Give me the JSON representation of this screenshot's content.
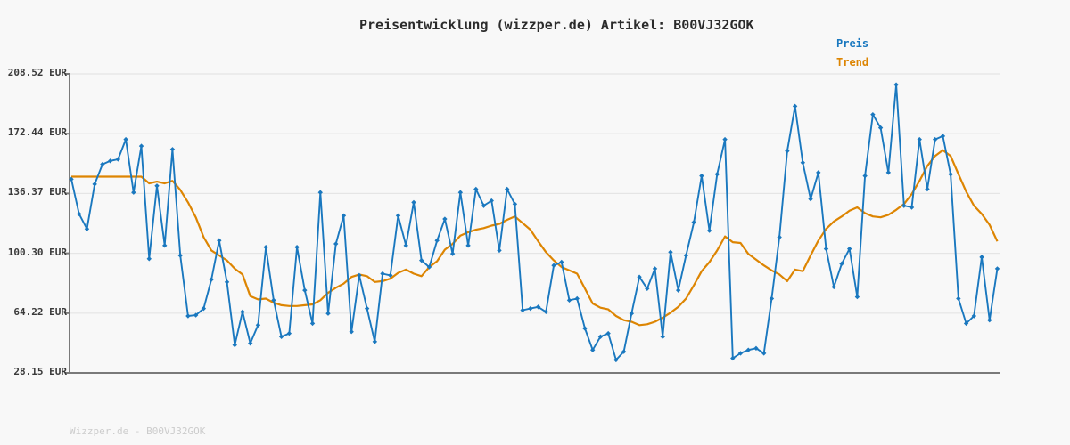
{
  "title": "Preisentwicklung (wizzper.de) Artikel: B00VJ32GOK",
  "legend": {
    "price_label": "Preis",
    "trend_label": "Trend"
  },
  "footer": "Wizzper.de - B00VJ32GOK",
  "colors": {
    "background": "#f8f8f8",
    "grid": "#e5e5e5",
    "axis": "#7a7a7a",
    "price": "#1a78bf",
    "trend": "#dd8502",
    "title_text": "#2b2b2b",
    "tick_text": "#3a3a3a",
    "footer_text": "#cccccc"
  },
  "y_axis": {
    "unit": "EUR",
    "tick_labels": [
      "208.52 EUR",
      "172.44 EUR",
      "136.37 EUR",
      "100.30 EUR",
      "64.22 EUR",
      "28.15 EUR"
    ],
    "tick_values": [
      208.52,
      172.44,
      136.37,
      100.3,
      64.22,
      28.15
    ]
  },
  "x_axis": {
    "tick_labels": []
  },
  "chart_data": {
    "type": "line",
    "title": "Preisentwicklung (wizzper.de) Artikel: B00VJ32GOK",
    "xlabel": "",
    "ylabel": "EUR",
    "ylim": [
      28.15,
      208.52
    ],
    "y_ticks": [
      208.52,
      172.44,
      136.37,
      100.3,
      64.22,
      28.15
    ],
    "grid": "horizontal",
    "legend_position": "top-right",
    "x_unit": "uniform daily index (no x tick labels shown)",
    "series": [
      {
        "name": "Preis",
        "color": "#1a78bf",
        "marker": "diamond",
        "values": [
          145,
          124,
          115,
          142,
          154,
          156,
          157,
          169,
          137,
          165,
          97,
          141,
          105,
          163,
          99,
          62.5,
          63,
          67,
          84.5,
          108,
          83,
          45,
          65,
          46,
          57,
          104,
          72,
          50,
          52,
          104,
          78,
          58,
          137,
          64,
          106,
          123,
          53,
          87,
          67,
          47,
          88,
          87,
          123,
          105,
          131,
          96,
          92,
          108,
          121,
          100,
          137,
          105,
          139,
          129,
          132,
          102,
          139,
          130,
          66,
          67,
          68,
          65,
          93,
          95,
          72,
          73,
          55,
          42,
          50,
          52,
          36,
          41,
          64,
          86,
          79,
          91,
          50,
          101,
          78,
          99,
          119,
          147,
          114,
          148,
          169,
          37,
          40,
          42,
          43,
          40,
          73,
          110,
          162,
          189,
          155,
          133,
          149,
          103,
          80,
          94,
          103,
          74,
          147,
          184,
          176,
          149,
          202,
          129,
          128,
          169,
          139,
          169,
          171,
          148,
          73,
          58,
          62.5,
          98,
          60,
          91
        ]
      },
      {
        "name": "Trend",
        "color": "#dd8502",
        "marker": "none",
        "values": [
          146.5,
          146.5,
          146.5,
          146.5,
          146.5,
          146.5,
          146.5,
          146.5,
          146.5,
          146.5,
          142.5,
          143.5,
          142.5,
          144,
          138.5,
          131,
          122,
          110,
          102,
          99,
          96,
          91,
          87.5,
          74.5,
          72.5,
          73,
          70.5,
          69,
          68.5,
          68.5,
          69,
          69.5,
          72,
          76.5,
          79.5,
          82,
          86,
          87.5,
          86.5,
          83,
          83.5,
          85,
          88.5,
          90.5,
          88,
          86.5,
          92,
          95.5,
          102.5,
          106,
          111,
          113,
          114.5,
          115.5,
          117,
          118,
          120.5,
          122.5,
          118.5,
          114.5,
          107.5,
          101,
          96,
          92,
          90,
          88,
          79,
          70,
          67.5,
          66.5,
          62.5,
          60,
          59,
          57,
          57.5,
          59,
          61.5,
          64.5,
          68,
          73,
          81,
          89.5,
          95,
          102,
          110.5,
          107,
          106.5,
          100,
          96.5,
          93,
          90,
          87.5,
          83.5,
          90.5,
          89.5,
          99,
          108,
          115,
          119.5,
          122.5,
          126,
          128,
          124.5,
          122.5,
          122,
          123.5,
          126.5,
          130,
          136,
          144,
          153,
          159,
          162.5,
          159,
          148,
          137.5,
          129,
          124,
          117.5,
          107.5
        ]
      }
    ]
  }
}
